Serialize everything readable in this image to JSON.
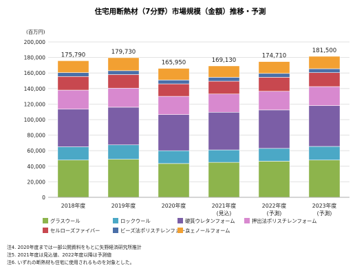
{
  "chart_data": {
    "type": "bar",
    "stacked": true,
    "title": "住宅用断熱材（7分野）市場規模（金額）推移・予測",
    "unit_label": "(百万円)",
    "categories": [
      "2018年度",
      "2019年度",
      "2020年度",
      "2021年度",
      "2022年度",
      "2023年度"
    ],
    "category_sublabels": [
      "",
      "",
      "",
      "(見込)",
      "(予測)",
      "(予測)"
    ],
    "ylim": [
      0,
      200000
    ],
    "yticks": [
      0,
      20000,
      40000,
      60000,
      80000,
      100000,
      120000,
      140000,
      160000,
      180000,
      200000
    ],
    "ytick_labels": [
      "0",
      "20,000",
      "40,000",
      "60,000",
      "80,000",
      "100,000",
      "120,000",
      "140,000",
      "160,000",
      "180,000",
      "200,000"
    ],
    "grid": true,
    "legend_position": "bottom",
    "totals": [
      175790,
      179730,
      165950,
      169130,
      174710,
      181500
    ],
    "total_labels": [
      "175,790",
      "179,730",
      "165,950",
      "169,130",
      "174,710",
      "181,500"
    ],
    "series": [
      {
        "name": "グラスウール",
        "color": "#8db44c",
        "values": [
          48000,
          49000,
          43500,
          45000,
          46500,
          48000
        ]
      },
      {
        "name": "ロックウール",
        "color": "#4ba8c6",
        "values": [
          17000,
          18500,
          16500,
          16000,
          16500,
          17500
        ]
      },
      {
        "name": "硬質ウレタンフォーム",
        "color": "#7b5ea6",
        "values": [
          48500,
          48500,
          46500,
          48500,
          49500,
          52500
        ]
      },
      {
        "name": "押出法ポリスチレンフォーム",
        "color": "#d889cf",
        "values": [
          24500,
          24500,
          23500,
          23500,
          24000,
          24500
        ]
      },
      {
        "name": "セルローズファイバー",
        "color": "#c8484f",
        "values": [
          17500,
          17500,
          16000,
          16500,
          18000,
          18000
        ]
      },
      {
        "name": "ビーズ法ポリスチレンフォーム",
        "color": "#4a6fa8",
        "values": [
          5000,
          5000,
          5000,
          5000,
          5000,
          5000
        ]
      },
      {
        "name": "フェノールフォーム",
        "color": "#f2a032",
        "values": [
          15290,
          16730,
          14950,
          14630,
          15210,
          16000
        ]
      }
    ]
  },
  "notes": [
    "注4.  2020年度までは一部公開資料をもとに矢野経済研究所推計",
    "注5.  2021年度は見込値、2022年度以降は予測値",
    "注6.  いずれの断熱材も住宅に使用されるものを対象とした。"
  ]
}
